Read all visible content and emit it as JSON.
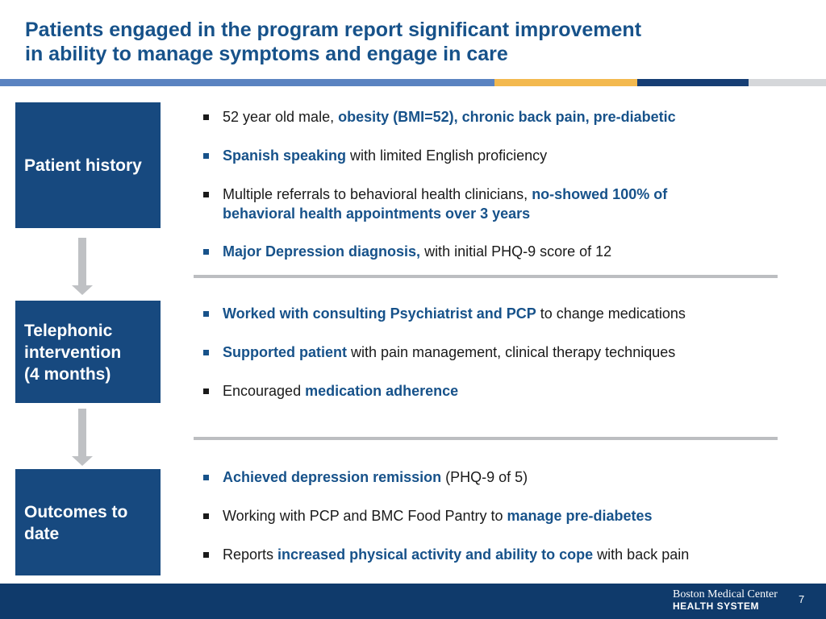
{
  "title": {
    "line1": "Patients engaged in the program report significant improvement",
    "line2": "in ability to manage symptoms and engage in care"
  },
  "colors": {
    "title": "#17528a",
    "stage_box": "#17497f",
    "stripe": [
      "#5a83c1",
      "#f3b94f",
      "#163e74",
      "#d5d7da"
    ],
    "footer": "#0f3a6b"
  },
  "stages": [
    {
      "lines": [
        "Patient history"
      ],
      "bullets": [
        {
          "parts": [
            "52 year old male, ",
            "obesity (BMI=52), chronic back pain, pre-diabetic",
            ""
          ]
        },
        {
          "parts": [
            "",
            "Spanish speaking",
            " with limited English proficiency"
          ]
        },
        {
          "parts": [
            "Multiple referrals to behavioral health clinicians, ",
            "no-showed 100% of behavioral health appointments over 3 years",
            ""
          ]
        },
        {
          "parts": [
            "",
            "Major Depression diagnosis,",
            " with initial PHQ-9 score of 12"
          ]
        }
      ]
    },
    {
      "lines": [
        "Telephonic",
        "intervention",
        "(4 months)"
      ],
      "bullets": [
        {
          "parts": [
            "",
            "Worked with consulting Psychiatrist and PCP",
            " to change medications"
          ]
        },
        {
          "parts": [
            "",
            "Supported patient",
            " with pain management, clinical therapy techniques"
          ]
        },
        {
          "parts": [
            "Encouraged ",
            "medication adherence",
            ""
          ]
        }
      ]
    },
    {
      "lines": [
        "Outcomes to",
        "date"
      ],
      "bullets": [
        {
          "parts": [
            "",
            "Achieved depression remission",
            " (PHQ-9 of 5)"
          ]
        },
        {
          "parts": [
            "Working with PCP and BMC Food Pantry to ",
            "manage pre-diabetes",
            ""
          ]
        },
        {
          "parts": [
            "Reports ",
            "increased physical activity and ability to cope",
            " with back pain"
          ]
        }
      ]
    }
  ],
  "footer": {
    "logo_line1": "Boston Medical Center",
    "logo_line2": "HEALTH SYSTEM",
    "page_number": "7"
  }
}
